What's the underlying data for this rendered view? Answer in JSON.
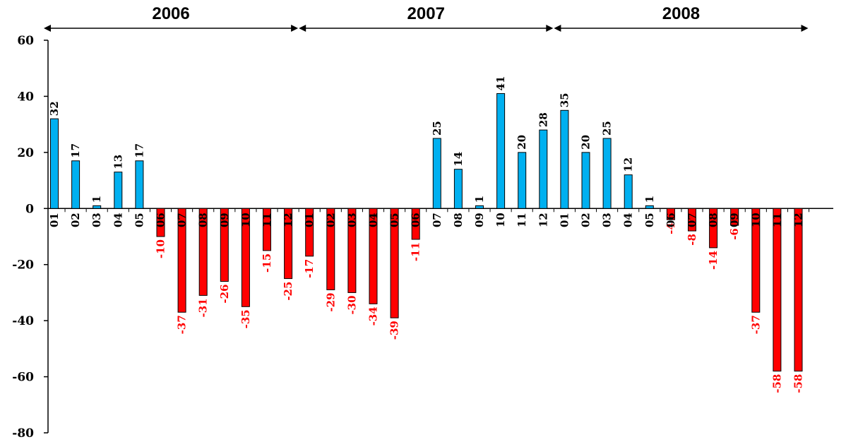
{
  "chart_data": {
    "type": "bar",
    "title": "",
    "xlabel": "",
    "ylabel": "",
    "ylim": [
      -80,
      60
    ],
    "yticks": [
      60,
      40,
      20,
      0,
      -20,
      -40,
      -60,
      -80
    ],
    "grid": false,
    "legend": "none",
    "colors": {
      "positive": "#00B0F0",
      "negative": "#FF0000",
      "axis": "#000000"
    },
    "year_groups": [
      {
        "label": "2006",
        "start_index": 0,
        "end_index": 11
      },
      {
        "label": "2007",
        "start_index": 12,
        "end_index": 23
      },
      {
        "label": "2008",
        "start_index": 24,
        "end_index": 35
      }
    ],
    "categories": [
      "01",
      "02",
      "03",
      "04",
      "05",
      "06",
      "07",
      "08",
      "09",
      "10",
      "11",
      "12",
      "01",
      "02",
      "03",
      "04",
      "05",
      "06",
      "07",
      "08",
      "09",
      "10",
      "11",
      "12",
      "01",
      "02",
      "03",
      "04",
      "05",
      "06",
      "07",
      "08",
      "09",
      "10",
      "11",
      "12"
    ],
    "values": [
      32,
      17,
      1,
      13,
      17,
      -10,
      -37,
      -31,
      -26,
      -35,
      -15,
      -25,
      -17,
      -29,
      -30,
      -34,
      -39,
      -11,
      25,
      14,
      1,
      41,
      20,
      28,
      35,
      20,
      25,
      12,
      1,
      -4,
      -8,
      -14,
      -6,
      -37,
      -58,
      -58
    ],
    "data_labels": [
      "32",
      "17",
      "1",
      "13",
      "17",
      "-10",
      "-37",
      "-31",
      "-26",
      "-35",
      "-15",
      "-25",
      "-17",
      "-29",
      "-30",
      "-34",
      "-39",
      "-11",
      "25",
      "14",
      "1",
      "41",
      "20",
      "28",
      "35",
      "20",
      "25",
      "12",
      "1",
      "-4",
      "-8",
      "-14",
      "-6",
      "-37",
      "-58",
      "-58"
    ]
  }
}
